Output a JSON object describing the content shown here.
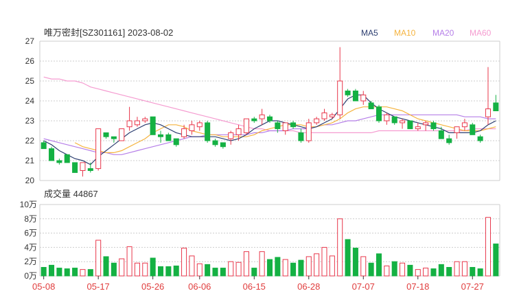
{
  "chart_data": {
    "type": "candlestick_volume",
    "title": "唯万密封[SZ301161] 2023-08-02",
    "legend": [
      {
        "name": "MA5",
        "color": "#2c3e70"
      },
      {
        "name": "MA10",
        "color": "#f5b33d"
      },
      {
        "name": "MA20",
        "color": "#b57ee8"
      },
      {
        "name": "MA60",
        "color": "#f59bd0"
      }
    ],
    "colors": {
      "up": "#e8364a",
      "down": "#14b143",
      "grid": "#cccccc",
      "axis_text": "#333333",
      "date_text": "#e03c3c"
    },
    "price_axis": {
      "ylim": [
        20,
        27
      ],
      "ticks": [
        "27",
        "26",
        "25",
        "24",
        "23",
        "22",
        "21",
        "20"
      ]
    },
    "volume_axis": {
      "ylim": [
        0,
        100000
      ],
      "ticks": [
        "10万",
        "8万",
        "6万",
        "4万",
        "2万",
        "0万"
      ]
    },
    "volume_label": "成交量 44867",
    "dates": [
      "05-08",
      "05-17",
      "05-26",
      "06-06",
      "06-15",
      "06-28",
      "07-07",
      "07-18",
      "07-27"
    ],
    "date_indices": [
      0,
      7,
      14,
      20,
      27,
      34,
      41,
      48,
      55
    ],
    "candles": [
      [
        21.9,
        22.0,
        21.6,
        21.6
      ],
      [
        21.6,
        21.7,
        21.0,
        21.0
      ],
      [
        21.0,
        21.1,
        20.8,
        20.9
      ],
      [
        21.3,
        21.3,
        20.9,
        20.9
      ],
      [
        20.9,
        20.9,
        20.4,
        20.4
      ],
      [
        20.5,
        20.9,
        20.2,
        20.9
      ],
      [
        20.6,
        20.9,
        20.4,
        20.5
      ],
      [
        20.6,
        22.6,
        20.5,
        22.6
      ],
      [
        22.4,
        22.4,
        22.1,
        22.2
      ],
      [
        22.2,
        22.2,
        21.9,
        22.1
      ],
      [
        22.0,
        22.6,
        22.0,
        22.6
      ],
      [
        22.7,
        23.7,
        22.5,
        23.0
      ],
      [
        22.8,
        23.2,
        22.7,
        23.0
      ],
      [
        23.0,
        23.2,
        22.9,
        23.1
      ],
      [
        23.2,
        23.2,
        22.3,
        22.3
      ],
      [
        22.3,
        22.5,
        21.9,
        22.2
      ],
      [
        22.3,
        22.4,
        22.0,
        22.0
      ],
      [
        22.1,
        22.1,
        21.7,
        21.8
      ],
      [
        22.2,
        22.8,
        22.1,
        22.6
      ],
      [
        22.5,
        23.0,
        22.3,
        22.8
      ],
      [
        22.7,
        23.0,
        22.5,
        22.9
      ],
      [
        22.9,
        23.0,
        21.9,
        22.0
      ],
      [
        22.0,
        22.1,
        21.7,
        21.8
      ],
      [
        21.9,
        21.9,
        21.6,
        21.7
      ],
      [
        22.1,
        22.5,
        21.8,
        22.4
      ],
      [
        22.3,
        22.8,
        22.0,
        22.6
      ],
      [
        22.4,
        23.1,
        22.3,
        23.1
      ],
      [
        23.1,
        23.2,
        22.9,
        23.0
      ],
      [
        23.1,
        23.6,
        22.8,
        23.3
      ],
      [
        23.2,
        23.3,
        22.9,
        23.0
      ],
      [
        22.9,
        23.0,
        22.4,
        22.6
      ],
      [
        22.5,
        22.9,
        22.3,
        22.9
      ],
      [
        22.9,
        23.0,
        22.6,
        22.7
      ],
      [
        22.4,
        22.6,
        21.9,
        22.0
      ],
      [
        22.0,
        23.1,
        21.9,
        22.9
      ],
      [
        22.9,
        23.2,
        22.8,
        23.1
      ],
      [
        23.1,
        23.6,
        23.0,
        23.4
      ],
      [
        23.2,
        23.4,
        23.1,
        23.3
      ],
      [
        23.3,
        26.7,
        23.1,
        25.0
      ],
      [
        24.5,
        24.6,
        24.2,
        24.3
      ],
      [
        24.5,
        24.6,
        24.0,
        24.0
      ],
      [
        24.0,
        24.5,
        23.8,
        24.3
      ],
      [
        23.9,
        24.0,
        23.6,
        23.6
      ],
      [
        23.7,
        23.8,
        22.9,
        23.0
      ],
      [
        23.0,
        23.4,
        22.8,
        23.3
      ],
      [
        23.2,
        23.2,
        22.8,
        22.9
      ],
      [
        22.9,
        23.1,
        22.6,
        23.0
      ],
      [
        23.0,
        23.0,
        22.6,
        22.6
      ],
      [
        22.6,
        22.9,
        22.5,
        22.7
      ],
      [
        22.8,
        23.0,
        22.5,
        22.9
      ],
      [
        22.9,
        23.0,
        22.5,
        22.6
      ],
      [
        22.5,
        22.7,
        22.1,
        22.1
      ],
      [
        22.1,
        22.3,
        21.8,
        21.9
      ],
      [
        22.4,
        22.7,
        22.1,
        22.7
      ],
      [
        22.7,
        23.1,
        22.5,
        22.9
      ],
      [
        22.8,
        22.9,
        22.3,
        22.3
      ],
      [
        22.2,
        22.3,
        21.9,
        22.0
      ],
      [
        23.2,
        25.7,
        22.8,
        23.6
      ],
      [
        23.9,
        24.3,
        23.5,
        23.5
      ]
    ],
    "volumes": [
      12000,
      15000,
      11000,
      10000,
      11000,
      9000,
      9000,
      50000,
      27000,
      18000,
      24000,
      41000,
      18000,
      18000,
      25000,
      13000,
      13000,
      14000,
      39000,
      28000,
      17000,
      16000,
      11000,
      11000,
      20000,
      19000,
      34000,
      11000,
      34000,
      23000,
      26000,
      23000,
      18000,
      22000,
      27000,
      31000,
      40000,
      28000,
      80000,
      51000,
      39000,
      27000,
      18000,
      31000,
      14000,
      20000,
      18000,
      15000,
      9000,
      11000,
      10000,
      16000,
      12000,
      20000,
      20000,
      12000,
      10000,
      82000,
      44867
    ],
    "ma5": [
      22.0,
      21.8,
      21.5,
      21.3,
      21.1,
      21.0,
      20.8,
      21.2,
      21.5,
      21.8,
      22.1,
      22.4,
      22.6,
      22.8,
      22.9,
      22.8,
      22.6,
      22.4,
      22.3,
      22.2,
      22.2,
      22.2,
      22.2,
      22.1,
      22.0,
      22.1,
      22.3,
      22.6,
      22.8,
      23.0,
      23.0,
      22.9,
      22.8,
      22.7,
      22.6,
      22.7,
      22.9,
      23.1,
      23.6,
      24.1,
      24.3,
      24.3,
      23.9,
      23.6,
      23.4,
      23.2,
      23.1,
      23.0,
      22.9,
      22.8,
      22.7,
      22.6,
      22.4,
      22.4,
      22.4,
      22.4,
      22.5,
      22.8,
      23.0
    ],
    "ma10": [
      null,
      null,
      null,
      null,
      21.9,
      21.7,
      21.6,
      21.5,
      21.4,
      21.4,
      21.5,
      21.7,
      21.9,
      22.1,
      22.4,
      22.6,
      22.8,
      22.8,
      22.7,
      22.5,
      22.4,
      22.3,
      22.3,
      22.2,
      22.2,
      22.2,
      22.2,
      22.3,
      22.5,
      22.6,
      22.7,
      22.8,
      22.8,
      22.8,
      22.7,
      22.7,
      22.8,
      22.9,
      23.1,
      23.4,
      23.6,
      23.7,
      23.7,
      23.7,
      23.7,
      23.6,
      23.5,
      23.3,
      23.1,
      23.0,
      22.9,
      22.8,
      22.7,
      22.6,
      22.5,
      22.5,
      22.5,
      22.6,
      22.7
    ],
    "ma20": [
      22.1,
      22.0,
      21.9,
      21.8,
      21.7,
      21.6,
      21.5,
      21.4,
      21.4,
      21.3,
      21.3,
      21.4,
      21.5,
      21.6,
      21.7,
      21.8,
      21.9,
      22.0,
      22.1,
      22.2,
      22.2,
      22.3,
      22.3,
      22.3,
      22.3,
      22.3,
      22.3,
      22.4,
      22.4,
      22.5,
      22.5,
      22.5,
      22.6,
      22.6,
      22.6,
      22.7,
      22.8,
      22.8,
      22.9,
      23.0,
      23.0,
      23.1,
      23.2,
      23.3,
      23.3,
      23.3,
      23.3,
      23.3,
      23.3,
      23.3,
      23.3,
      23.3,
      23.3,
      23.3,
      23.2,
      23.2,
      23.2,
      23.1,
      23.1
    ],
    "ma60": [
      25.2,
      25.1,
      25.1,
      25.0,
      25.0,
      24.9,
      24.7,
      24.6,
      24.5,
      24.4,
      24.3,
      24.2,
      24.1,
      24.0,
      23.9,
      23.8,
      23.7,
      23.6,
      23.5,
      23.4,
      23.3,
      23.2,
      23.1,
      23.0,
      22.9,
      22.8,
      22.7,
      22.6,
      22.6,
      22.5,
      22.5,
      22.5,
      22.5,
      22.4,
      22.4,
      22.4,
      22.4,
      22.4,
      22.4,
      22.4,
      22.4,
      22.4,
      22.4,
      22.5,
      22.5,
      22.5,
      22.5,
      22.5,
      22.5,
      22.5,
      22.5,
      22.5,
      22.5,
      22.5,
      22.5,
      22.6,
      22.6,
      22.6,
      22.6
    ]
  }
}
